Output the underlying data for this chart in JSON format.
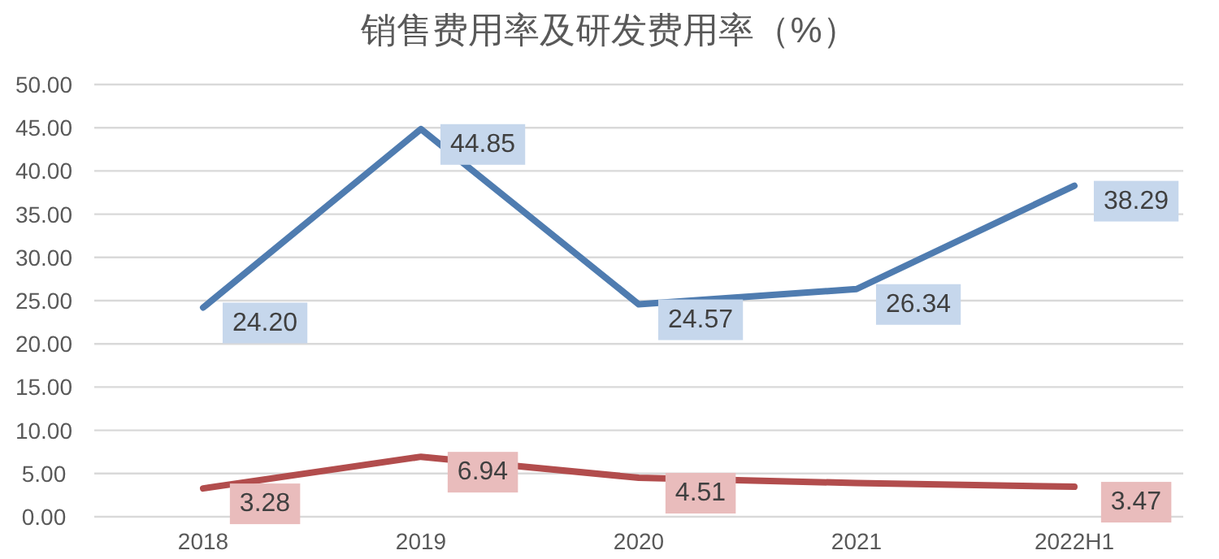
{
  "chart_data": {
    "type": "line",
    "title": "销售费用率及研发费用率（%）",
    "categories": [
      "2018",
      "2019",
      "2020",
      "2021",
      "2022H1"
    ],
    "series": [
      {
        "color": "#4f7cb0",
        "values": [
          24.2,
          44.85,
          24.57,
          26.34,
          38.29
        ],
        "value_labels": [
          "24.20",
          "44.85",
          "24.57",
          "26.34",
          "38.29"
        ]
      },
      {
        "color": "#b24d4d",
        "values": [
          3.28,
          6.94,
          4.51,
          3.9,
          3.47
        ],
        "value_labels": [
          "3.28",
          "6.94",
          "4.51",
          null,
          "3.47"
        ]
      }
    ],
    "ylim": [
      0,
      50
    ],
    "yticks": [
      {
        "value": 0,
        "label": "0.00"
      },
      {
        "value": 5,
        "label": "5.00"
      },
      {
        "value": 10,
        "label": "10.00"
      },
      {
        "value": 15,
        "label": "15.00"
      },
      {
        "value": 20,
        "label": "20.00"
      },
      {
        "value": 25,
        "label": "25.00"
      },
      {
        "value": 30,
        "label": "30.00"
      },
      {
        "value": 35,
        "label": "35.00"
      },
      {
        "value": 40,
        "label": "40.00"
      },
      {
        "value": 45,
        "label": "45.00"
      },
      {
        "value": 50,
        "label": "50.00"
      }
    ],
    "grid": "y",
    "marker": "none",
    "line_style": "solid"
  }
}
